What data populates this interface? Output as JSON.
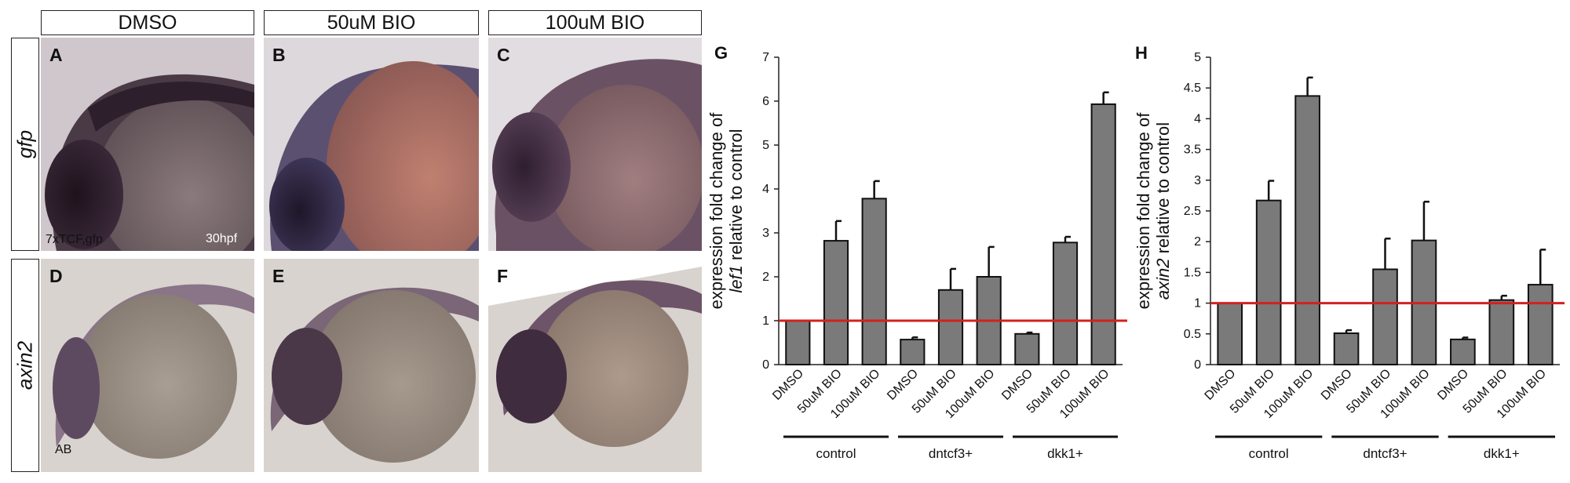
{
  "column_headers": [
    "DMSO",
    "50uM BIO",
    "100uM BIO"
  ],
  "row_labels": [
    "gfp",
    "axin2"
  ],
  "panel_letters": [
    "A",
    "B",
    "C",
    "D",
    "E",
    "F"
  ],
  "panel_annotations": {
    "line": "7xTCF,gfp",
    "stage": "30hpf",
    "strain": "AB"
  },
  "chart_data": [
    {
      "type": "bar",
      "panel": "G",
      "ylabel_line1": "expression fold change of",
      "ylabel_gene": "lef1",
      "ylabel_rest": " relative to control",
      "categories": [
        "DMSO",
        "50uM BIO",
        "100uM BIO",
        "DMSO",
        "50uM BIO",
        "100uM BIO",
        "DMSO",
        "50uM BIO",
        "100uM BIO"
      ],
      "groups": [
        "control",
        "dntcf3+",
        "dkk1+"
      ],
      "values": [
        1.0,
        2.82,
        3.78,
        0.57,
        1.7,
        2.0,
        0.7,
        2.78,
        5.93
      ],
      "errors": [
        0.0,
        0.45,
        0.4,
        0.05,
        0.48,
        0.68,
        0.03,
        0.13,
        0.27
      ],
      "yticks": [
        "0",
        "1",
        "2",
        "3",
        "4",
        "5",
        "6",
        "7"
      ],
      "ylim": [
        0,
        7
      ],
      "reference_line": 1,
      "bar_color": "#7a7a7a",
      "reference_color": "#d42020"
    },
    {
      "type": "bar",
      "panel": "H",
      "ylabel_line1": "expression fold change of",
      "ylabel_gene": "axin2",
      "ylabel_rest": " relative to control",
      "categories": [
        "DMSO",
        "50uM BIO",
        "100uM BIO",
        "DMSO",
        "50uM BIO",
        "100uM BIO",
        "DMSO",
        "50uM BIO",
        "100uM BIO"
      ],
      "groups": [
        "control",
        "dntcf3+",
        "dkk1+"
      ],
      "values": [
        1.0,
        2.67,
        4.37,
        0.51,
        1.55,
        2.02,
        0.41,
        1.05,
        1.3
      ],
      "errors": [
        0.0,
        0.32,
        0.3,
        0.05,
        0.5,
        0.63,
        0.03,
        0.07,
        0.57
      ],
      "yticks": [
        "0",
        "0.5",
        "1",
        "1.5",
        "2",
        "2.5",
        "3",
        "3.5",
        "4",
        "4.5",
        "5"
      ],
      "ylim": [
        0,
        5
      ],
      "reference_line": 1,
      "bar_color": "#7a7a7a",
      "reference_color": "#d42020"
    }
  ]
}
